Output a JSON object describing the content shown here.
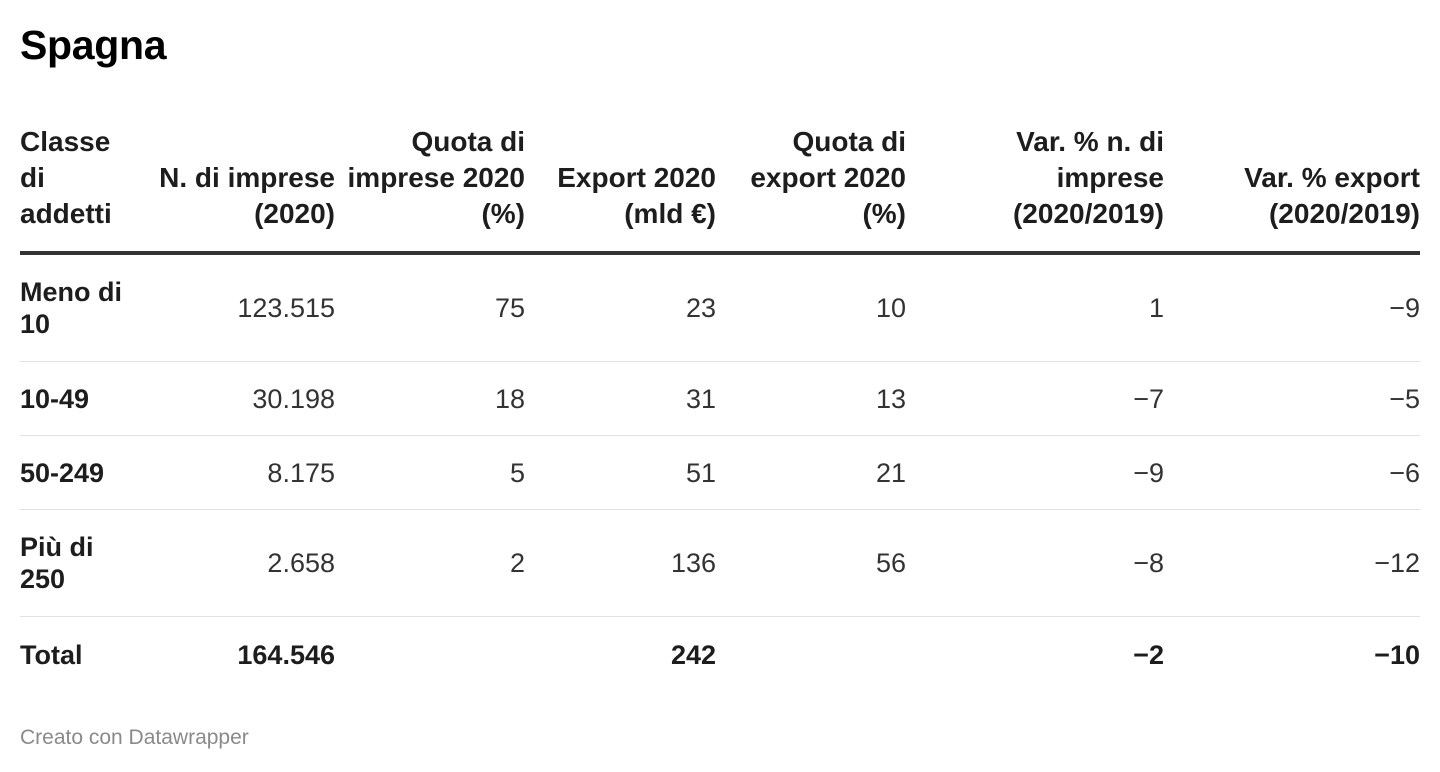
{
  "title": "Spagna",
  "footer": "Creato con Datawrapper",
  "chart_data": {
    "type": "table",
    "title": "Spagna",
    "columns": [
      "Classe\ndi\naddetti",
      "N. di imprese (2020)",
      "Quota di imprese 2020 (%)",
      "Export 2020 (mld €)",
      "Quota di export 2020 (%)",
      "Var. % n. di imprese (2020/2019)",
      "Var. % export (2020/2019)"
    ],
    "rows": [
      [
        "Meno di 10",
        "123.515",
        "75",
        "23",
        "10",
        "1",
        "−9"
      ],
      [
        "10-49",
        "30.198",
        "18",
        "31",
        "13",
        "−7",
        "−5"
      ],
      [
        "50-249",
        "8.175",
        "5",
        "51",
        "21",
        "−9",
        "−6"
      ],
      [
        "Più di 250",
        "2.658",
        "2",
        "136",
        "56",
        "−8",
        "−12"
      ],
      [
        "Total",
        "164.546",
        "",
        "242",
        "",
        "−2",
        "−10"
      ]
    ]
  }
}
